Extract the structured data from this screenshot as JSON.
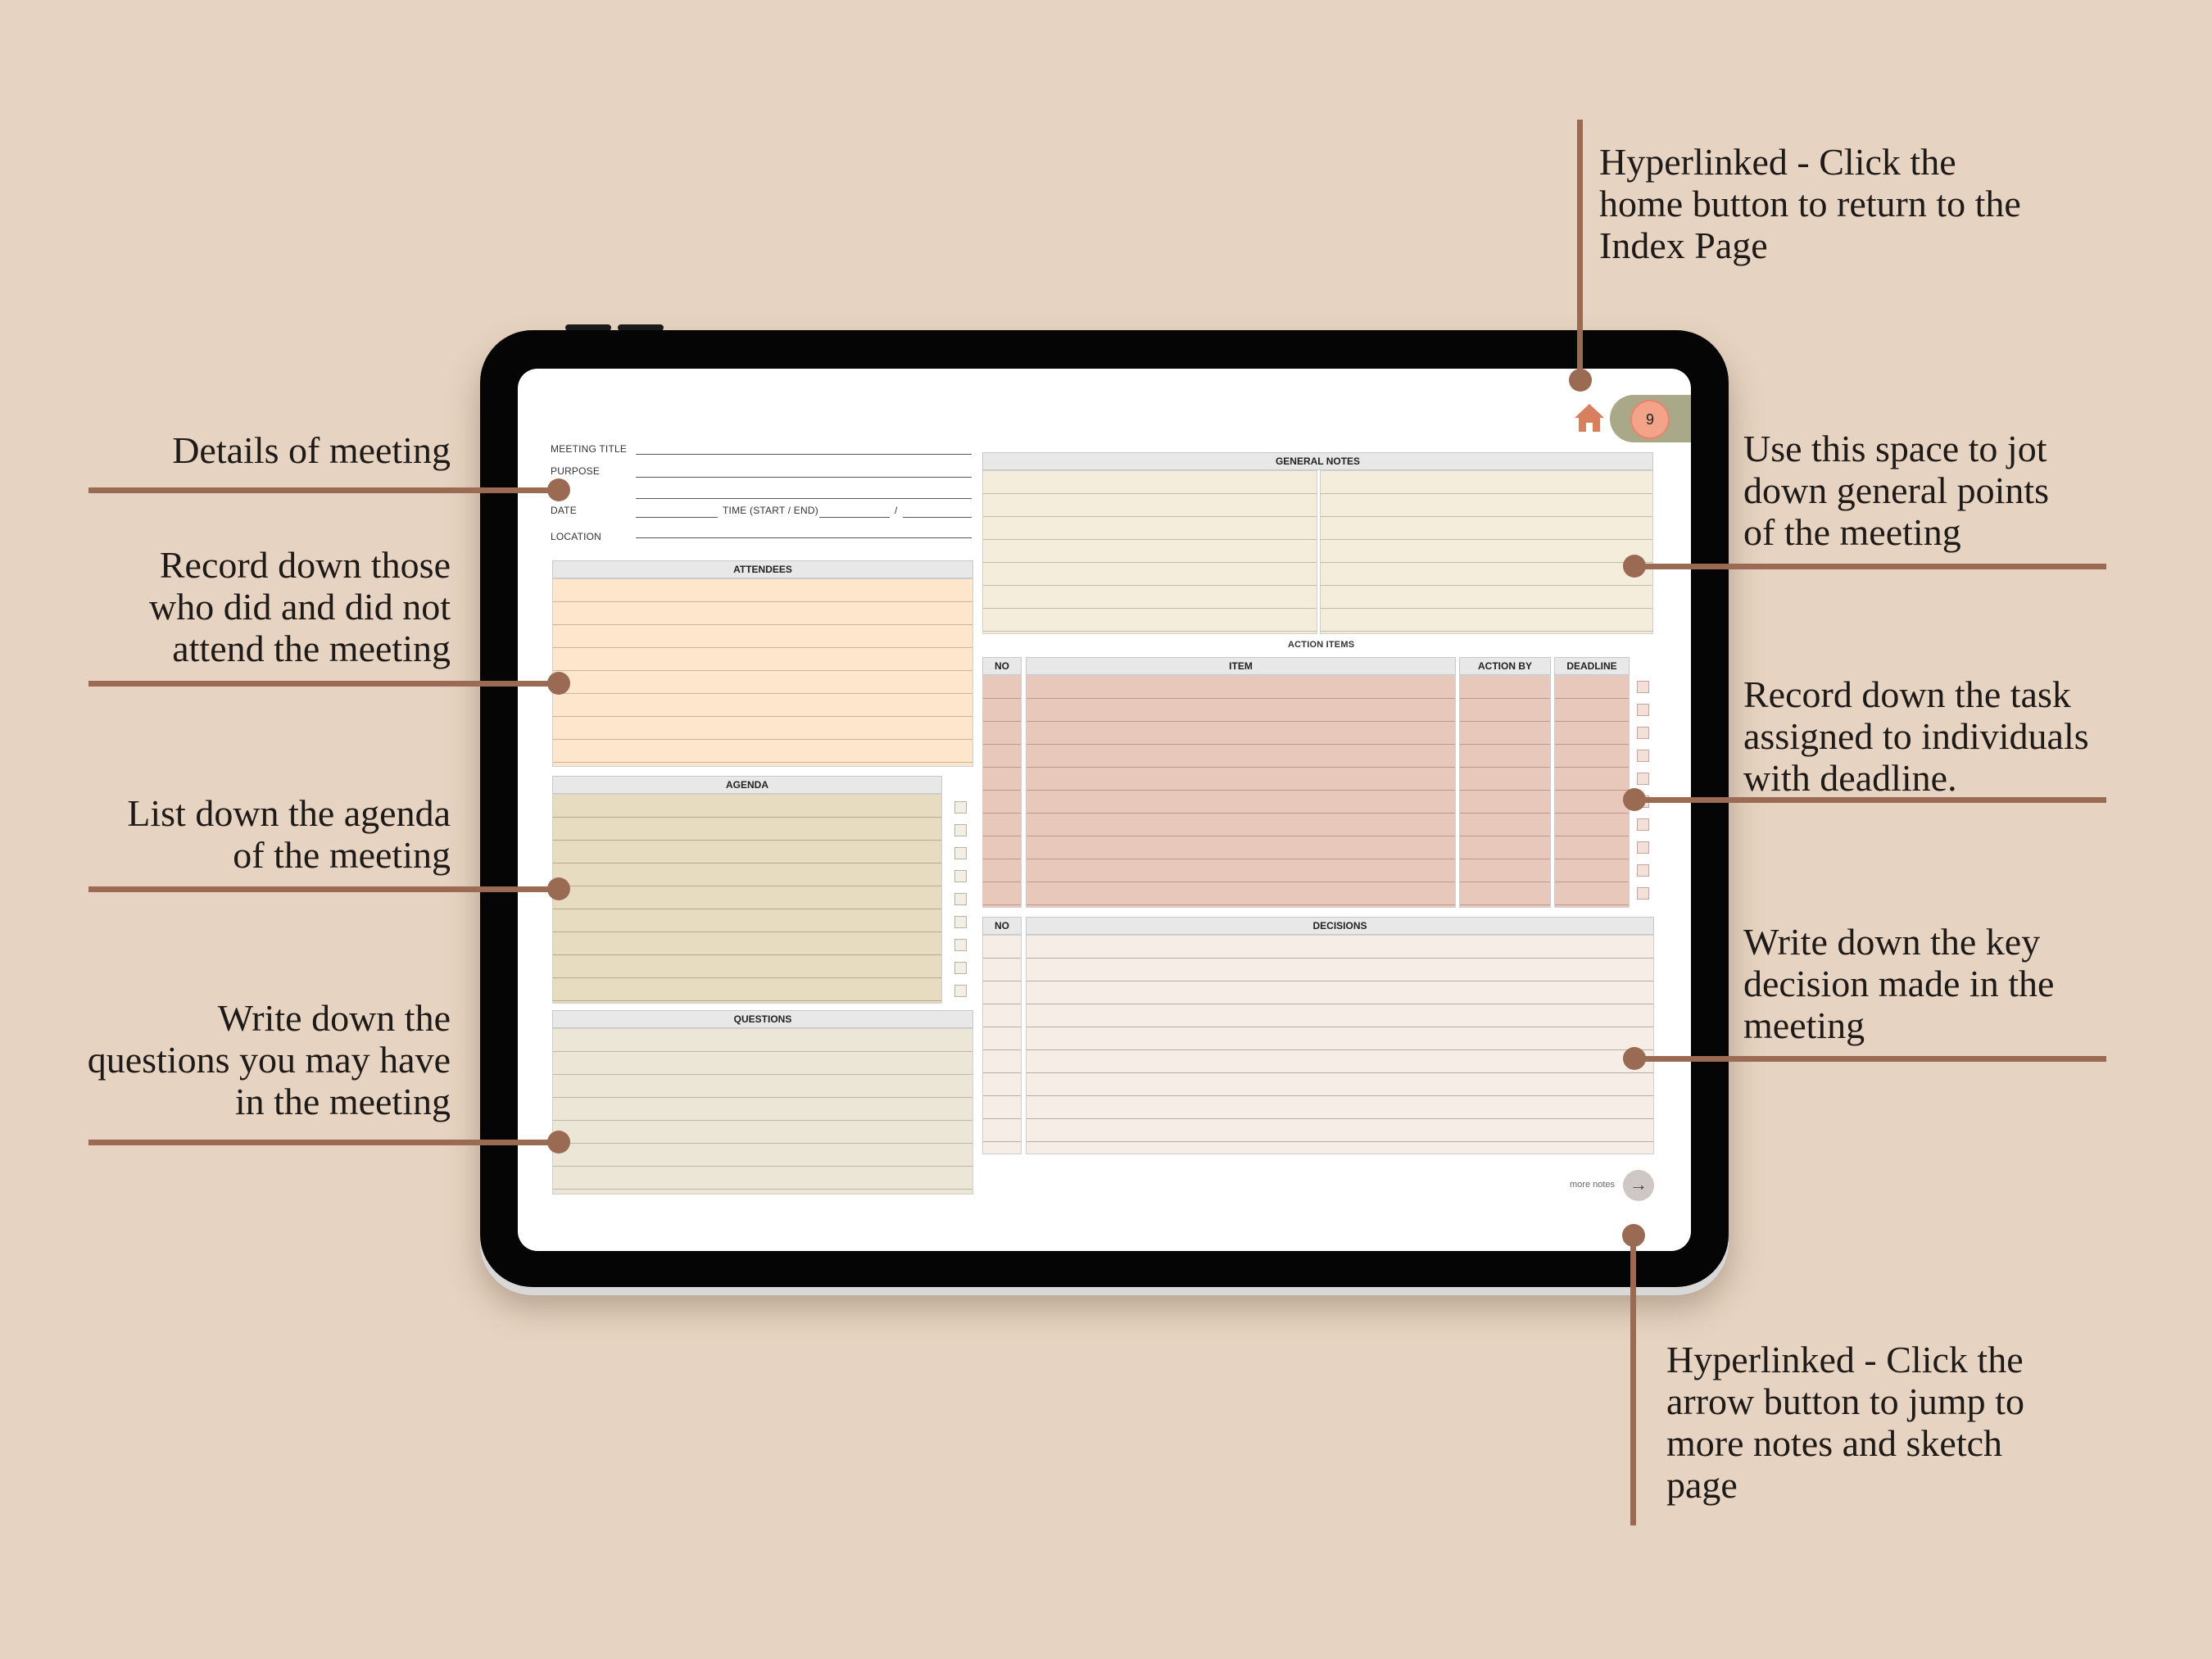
{
  "callouts": {
    "home": [
      "Hyperlinked - Click the",
      "home button to return to the",
      "Index Page"
    ],
    "details": [
      "Details of meeting"
    ],
    "attendees": [
      "Record down those",
      "who did and did not",
      "attend the meeting"
    ],
    "agenda": [
      "List down the agenda",
      "of the meeting"
    ],
    "questions": [
      "Write down the",
      "questions you may have",
      "in the meeting"
    ],
    "general_notes": [
      "Use this space to jot",
      "down general points",
      "of the meeting"
    ],
    "action_items": [
      "Record down the task",
      "assigned to individuals",
      "with deadline."
    ],
    "decisions": [
      "Write down the key",
      "decision made in the",
      "meeting"
    ],
    "arrow": [
      "Hyperlinked - Click the",
      "arrow button to jump to",
      "more notes and sketch",
      "page"
    ]
  },
  "planner": {
    "fields": {
      "meeting_title": "MEETING TITLE",
      "purpose": "PURPOSE",
      "date": "DATE",
      "time": "TIME (START / END)",
      "slash": "/",
      "location": "LOCATION"
    },
    "page_number": "9",
    "sections": {
      "attendees": "ATTENDEES",
      "agenda": "AGENDA",
      "questions": "QUESTIONS",
      "general_notes": "GENERAL NOTES",
      "action_items": "ACTION ITEMS",
      "decisions": "DECISIONS"
    },
    "action_columns": {
      "no": "NO",
      "item": "ITEM",
      "action_by": "ACTION BY",
      "deadline": "DEADLINE"
    },
    "decision_columns": {
      "no": "NO",
      "decisions": "DECISIONS"
    },
    "more_notes": "more notes"
  },
  "colors": {
    "background": "#e7d3c1",
    "leader": "#9a6a52",
    "attendees_fill": "#fde6cc",
    "agenda_fill": "#e7dcc0",
    "questions_fill": "#ebe6d6",
    "general_notes_fill": "#f4eddc",
    "action_items_fill": "#e7c8ba",
    "decisions_fill": "#f5ede6",
    "home_icon": "#d8805e",
    "page_badge": "#f2a38a"
  }
}
